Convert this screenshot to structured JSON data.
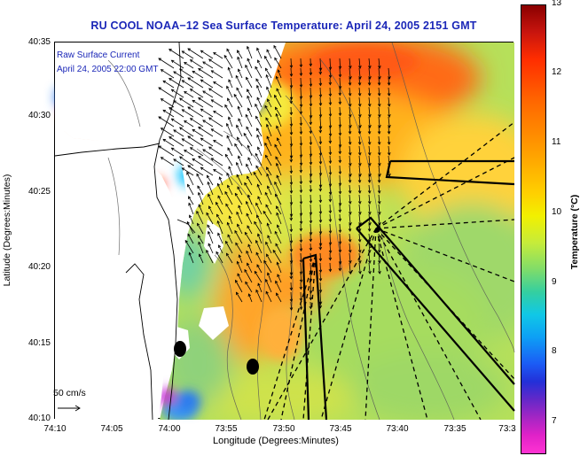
{
  "title": "RU COOL  NOAA−12  Sea Surface Temperature:  April 24, 2005 2151 GMT",
  "annotation": {
    "line1": "Raw Surface Current",
    "line2": "April 24, 2005 22:00 GMT"
  },
  "scale": {
    "label": "50 cm/s"
  },
  "axes": {
    "x_title": "Longitude (Degrees:Minutes)",
    "y_title": "Latitude (Degrees:Minutes)",
    "x_ticks": [
      "74:10",
      "74:05",
      "74:00",
      "73:55",
      "73:50",
      "73:45",
      "73:40",
      "73:35",
      "73:3"
    ],
    "y_ticks": [
      "40:35",
      "40:30",
      "40:25",
      "40:20",
      "40:15",
      "40:10"
    ]
  },
  "colorbar": {
    "title": "Temperature (°C)",
    "ticks": [
      "13",
      "12",
      "11",
      "10",
      "9",
      "8",
      "7"
    ]
  },
  "colors": {
    "title": "#1b27b8",
    "land": "#ffffff",
    "contour": "#555555"
  },
  "chart_data": {
    "type": "heatmap",
    "title": "RU COOL  NOAA−12  Sea Surface Temperature:  April 24, 2005 2151 GMT",
    "xlabel": "Longitude (Degrees:Minutes)",
    "ylabel": "Latitude (Degrees:Minutes)",
    "xlim": [
      "74:10",
      "73:30"
    ],
    "ylim": [
      "40:10",
      "40:35"
    ],
    "colorbar_label": "Temperature (°C)",
    "colorbar_range": [
      6.5,
      13
    ],
    "colorbar_ticks": [
      7,
      8,
      9,
      10,
      11,
      12,
      13
    ],
    "overlay": "Raw Surface Current vectors, April 24, 2005 22:00 GMT",
    "vector_scale": "50 cm/s"
  }
}
